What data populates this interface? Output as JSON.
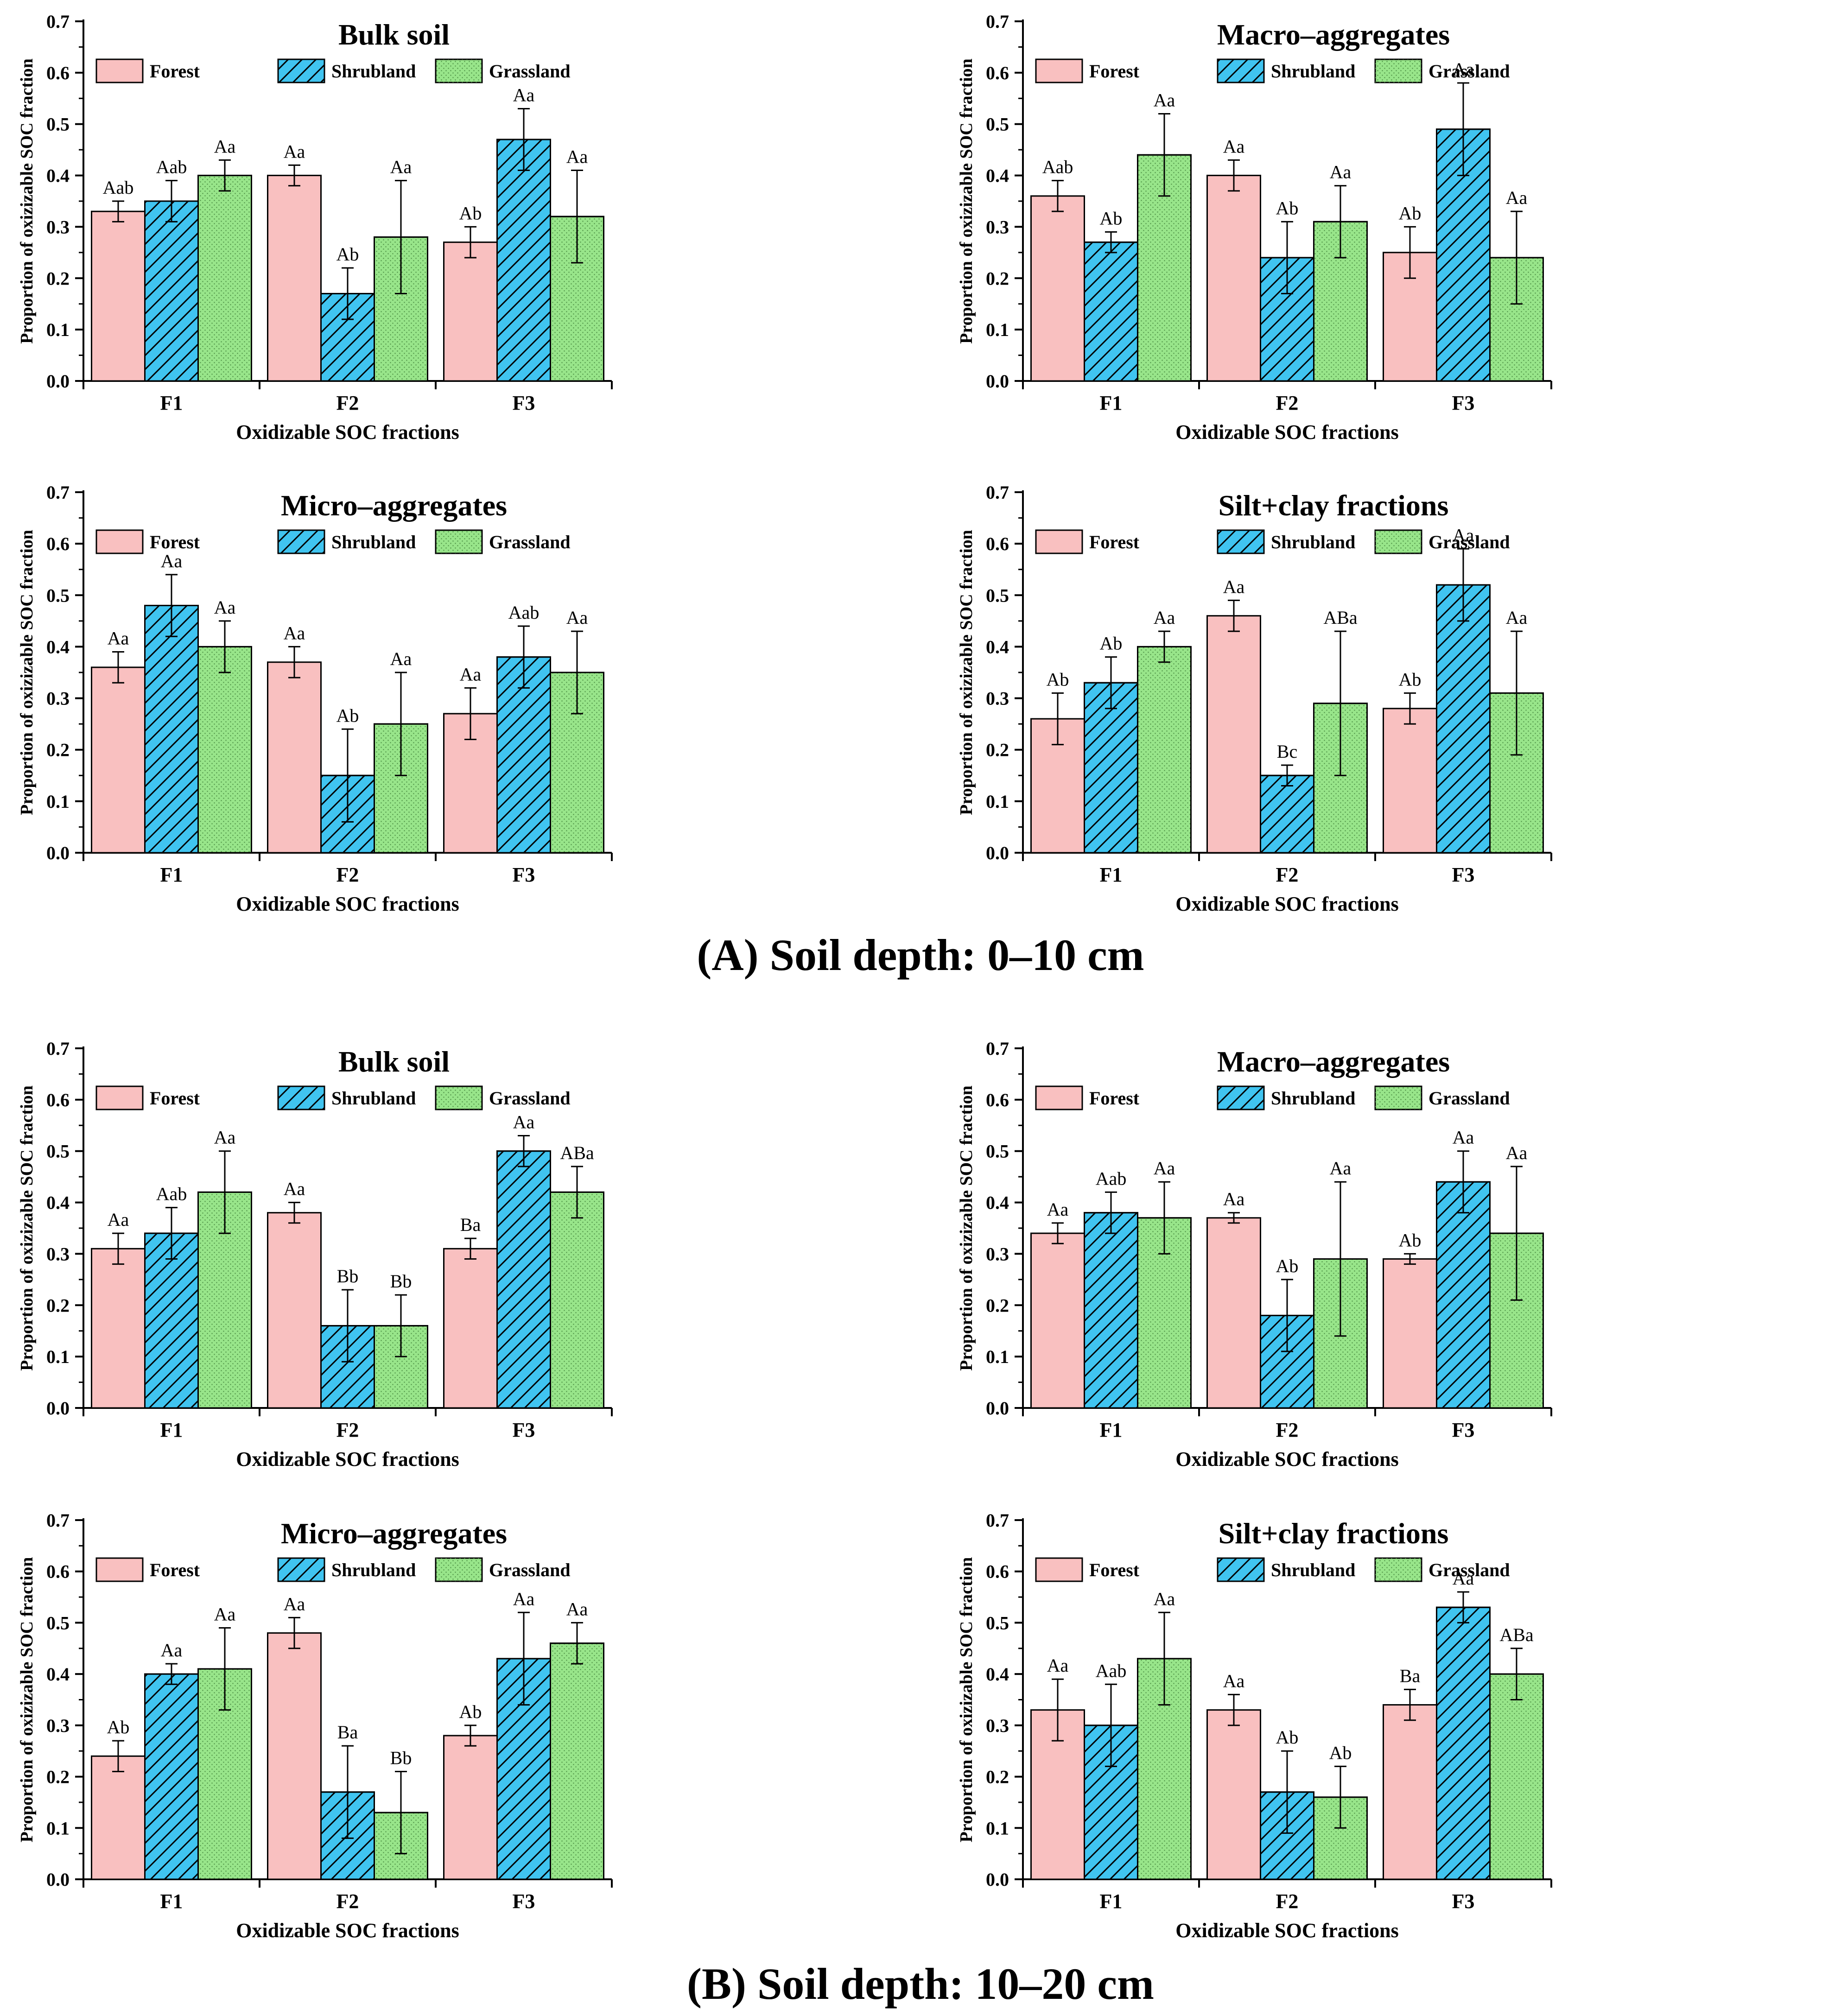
{
  "figure": {
    "section_a": "(A)  Soil depth: 0–10 cm",
    "section_b": "(B)  Soil depth: 10–20 cm",
    "colors": {
      "forest": "#f9c0c0",
      "shrubland": "#40c4f0",
      "grassland": "#98e58a"
    }
  },
  "chart_data": [
    {
      "type": "bar",
      "title": "Bulk soil",
      "section": "A",
      "xlabel": "Oxidizable SOC fractions",
      "ylabel": "Proportion of oxizizable SOC fraction",
      "ylim": [
        0,
        0.7
      ],
      "yticks": [
        "0.0",
        "0.1",
        "0.2",
        "0.3",
        "0.4",
        "0.5",
        "0.6",
        "0.7"
      ],
      "categories": [
        "F1",
        "F2",
        "F3"
      ],
      "series": [
        {
          "name": "Forest",
          "values": [
            0.33,
            0.4,
            0.27
          ],
          "errors": [
            0.02,
            0.02,
            0.03
          ],
          "labels": [
            "Aab",
            "Aa",
            "Ab"
          ]
        },
        {
          "name": "Shrubland",
          "values": [
            0.35,
            0.17,
            0.47
          ],
          "errors": [
            0.04,
            0.05,
            0.06
          ],
          "labels": [
            "Aab",
            "Ab",
            "Aa"
          ]
        },
        {
          "name": "Grassland",
          "values": [
            0.4,
            0.28,
            0.32
          ],
          "errors": [
            0.03,
            0.11,
            0.09
          ],
          "labels": [
            "Aa",
            "Aa",
            "Aa"
          ]
        }
      ]
    },
    {
      "type": "bar",
      "title": "Macro–aggregates",
      "section": "A",
      "xlabel": "Oxidizable SOC fractions",
      "ylabel": "Proportion of oxizizable SOC fraction",
      "ylim": [
        0,
        0.7
      ],
      "yticks": [
        "0.0",
        "0.1",
        "0.2",
        "0.3",
        "0.4",
        "0.5",
        "0.6",
        "0.7"
      ],
      "categories": [
        "F1",
        "F2",
        "F3"
      ],
      "series": [
        {
          "name": "Forest",
          "values": [
            0.36,
            0.4,
            0.25
          ],
          "errors": [
            0.03,
            0.03,
            0.05
          ],
          "labels": [
            "Aab",
            "Aa",
            "Ab"
          ]
        },
        {
          "name": "Shrubland",
          "values": [
            0.27,
            0.24,
            0.49
          ],
          "errors": [
            0.02,
            0.07,
            0.09
          ],
          "labels": [
            "Ab",
            "Ab",
            "Aa"
          ]
        },
        {
          "name": "Grassland",
          "values": [
            0.44,
            0.31,
            0.24
          ],
          "errors": [
            0.08,
            0.07,
            0.09
          ],
          "labels": [
            "Aa",
            "Aa",
            "Aa"
          ]
        }
      ]
    },
    {
      "type": "bar",
      "title": "Micro–aggregates",
      "section": "A",
      "xlabel": "Oxidizable SOC fractions",
      "ylabel": "Proportion of oxizizable SOC fraction",
      "ylim": [
        0,
        0.7
      ],
      "yticks": [
        "0.0",
        "0.1",
        "0.2",
        "0.3",
        "0.4",
        "0.5",
        "0.6",
        "0.7"
      ],
      "categories": [
        "F1",
        "F2",
        "F3"
      ],
      "series": [
        {
          "name": "Forest",
          "values": [
            0.36,
            0.37,
            0.27
          ],
          "errors": [
            0.03,
            0.03,
            0.05
          ],
          "labels": [
            "Aa",
            "Aa",
            "Aa"
          ]
        },
        {
          "name": "Shrubland",
          "values": [
            0.48,
            0.15,
            0.38
          ],
          "errors": [
            0.06,
            0.09,
            0.06
          ],
          "labels": [
            "Aa",
            "Ab",
            "Aab"
          ]
        },
        {
          "name": "Grassland",
          "values": [
            0.4,
            0.25,
            0.35
          ],
          "errors": [
            0.05,
            0.1,
            0.08
          ],
          "labels": [
            "Aa",
            "Aa",
            "Aa"
          ]
        }
      ]
    },
    {
      "type": "bar",
      "title": "Silt+clay fractions",
      "section": "A",
      "xlabel": "Oxidizable SOC fractions",
      "ylabel": "Proportion of oxizizable SOC fraction",
      "ylim": [
        0,
        0.7
      ],
      "yticks": [
        "0.0",
        "0.1",
        "0.2",
        "0.3",
        "0.4",
        "0.5",
        "0.6",
        "0.7"
      ],
      "categories": [
        "F1",
        "F2",
        "F3"
      ],
      "series": [
        {
          "name": "Forest",
          "values": [
            0.26,
            0.46,
            0.28
          ],
          "errors": [
            0.05,
            0.03,
            0.03
          ],
          "labels": [
            "Ab",
            "Aa",
            "Ab"
          ]
        },
        {
          "name": "Shrubland",
          "values": [
            0.33,
            0.15,
            0.52
          ],
          "errors": [
            0.05,
            0.02,
            0.07
          ],
          "labels": [
            "Ab",
            "Bc",
            "Aa"
          ]
        },
        {
          "name": "Grassland",
          "values": [
            0.4,
            0.29,
            0.31
          ],
          "errors": [
            0.03,
            0.14,
            0.12
          ],
          "labels": [
            "Aa",
            "ABa",
            "Aa"
          ]
        }
      ]
    },
    {
      "type": "bar",
      "title": "Bulk soil",
      "section": "B",
      "xlabel": "Oxidizable SOC fractions",
      "ylabel": "Proportion of oxizizable SOC fraction",
      "ylim": [
        0,
        0.7
      ],
      "yticks": [
        "0.0",
        "0.1",
        "0.2",
        "0.3",
        "0.4",
        "0.5",
        "0.6",
        "0.7"
      ],
      "categories": [
        "F1",
        "F2",
        "F3"
      ],
      "series": [
        {
          "name": "Forest",
          "values": [
            0.31,
            0.38,
            0.31
          ],
          "errors": [
            0.03,
            0.02,
            0.02
          ],
          "labels": [
            "Aa",
            "Aa",
            "Ba"
          ]
        },
        {
          "name": "Shrubland",
          "values": [
            0.34,
            0.16,
            0.5
          ],
          "errors": [
            0.05,
            0.07,
            0.03
          ],
          "labels": [
            "Aab",
            "Bb",
            "Aa"
          ]
        },
        {
          "name": "Grassland",
          "values": [
            0.42,
            0.16,
            0.42
          ],
          "errors": [
            0.08,
            0.06,
            0.05
          ],
          "labels": [
            "Aa",
            "Bb",
            "ABa"
          ]
        }
      ]
    },
    {
      "type": "bar",
      "title": "Macro–aggregates",
      "section": "B",
      "xlabel": "Oxidizable SOC fractions",
      "ylabel": "Proportion of oxizizable SOC fraction",
      "ylim": [
        0,
        0.7
      ],
      "yticks": [
        "0.0",
        "0.1",
        "0.2",
        "0.3",
        "0.4",
        "0.5",
        "0.6",
        "0.7"
      ],
      "categories": [
        "F1",
        "F2",
        "F3"
      ],
      "series": [
        {
          "name": "Forest",
          "values": [
            0.34,
            0.37,
            0.29
          ],
          "errors": [
            0.02,
            0.01,
            0.01
          ],
          "labels": [
            "Aa",
            "Aa",
            "Ab"
          ]
        },
        {
          "name": "Shrubland",
          "values": [
            0.38,
            0.18,
            0.44
          ],
          "errors": [
            0.04,
            0.07,
            0.06
          ],
          "labels": [
            "Aab",
            "Ab",
            "Aa"
          ]
        },
        {
          "name": "Grassland",
          "values": [
            0.37,
            0.29,
            0.34
          ],
          "errors": [
            0.07,
            0.15,
            0.13
          ],
          "labels": [
            "Aa",
            "Aa",
            "Aa"
          ]
        }
      ]
    },
    {
      "type": "bar",
      "title": "Micro–aggregates",
      "section": "B",
      "xlabel": "Oxidizable SOC fractions",
      "ylabel": "Proportion of oxizizable SOC fraction",
      "ylim": [
        0,
        0.7
      ],
      "yticks": [
        "0.0",
        "0.1",
        "0.2",
        "0.3",
        "0.4",
        "0.5",
        "0.6",
        "0.7"
      ],
      "categories": [
        "F1",
        "F2",
        "F3"
      ],
      "series": [
        {
          "name": "Forest",
          "values": [
            0.24,
            0.48,
            0.28
          ],
          "errors": [
            0.03,
            0.03,
            0.02
          ],
          "labels": [
            "Ab",
            "Aa",
            "Ab"
          ]
        },
        {
          "name": "Shrubland",
          "values": [
            0.4,
            0.17,
            0.43
          ],
          "errors": [
            0.02,
            0.09,
            0.09
          ],
          "labels": [
            "Aa",
            "Ba",
            "Aa"
          ]
        },
        {
          "name": "Grassland",
          "values": [
            0.41,
            0.13,
            0.46
          ],
          "errors": [
            0.08,
            0.08,
            0.04
          ],
          "labels": [
            "Aa",
            "Bb",
            "Aa"
          ]
        }
      ]
    },
    {
      "type": "bar",
      "title": "Silt+clay fractions",
      "section": "B",
      "xlabel": "Oxidizable SOC fractions",
      "ylabel": "Proportion of oxizizable SOC fraction",
      "ylim": [
        0,
        0.7
      ],
      "yticks": [
        "0.0",
        "0.1",
        "0.2",
        "0.3",
        "0.4",
        "0.5",
        "0.6",
        "0.7"
      ],
      "categories": [
        "F1",
        "F2",
        "F3"
      ],
      "series": [
        {
          "name": "Forest",
          "values": [
            0.33,
            0.33,
            0.34
          ],
          "errors": [
            0.06,
            0.03,
            0.03
          ],
          "labels": [
            "Aa",
            "Aa",
            "Ba"
          ]
        },
        {
          "name": "Shrubland",
          "values": [
            0.3,
            0.17,
            0.53
          ],
          "errors": [
            0.08,
            0.08,
            0.03
          ],
          "labels": [
            "Aab",
            "Ab",
            "Aa"
          ]
        },
        {
          "name": "Grassland",
          "values": [
            0.43,
            0.16,
            0.4
          ],
          "errors": [
            0.09,
            0.06,
            0.05
          ],
          "labels": [
            "Aa",
            "Ab",
            "ABa"
          ]
        }
      ]
    }
  ]
}
